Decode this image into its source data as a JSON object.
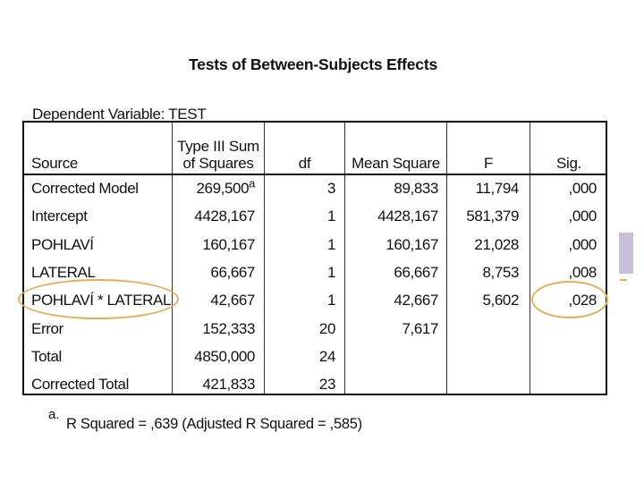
{
  "title": "Tests of Between-Subjects Effects",
  "dependent_variable": "Dependent Variable: TEST",
  "headers": {
    "source": "Source",
    "ss_line1": "Type III Sum",
    "ss_line2": "of Squares",
    "df": "df",
    "ms": "Mean Square",
    "f": "F",
    "sig": "Sig."
  },
  "rows": [
    {
      "source": "Corrected Model",
      "ss": "269,500",
      "ss_sup": "a",
      "df": "3",
      "ms": "89,833",
      "f": "11,794",
      "sig": ",000"
    },
    {
      "source": "Intercept",
      "ss": "4428,167",
      "ss_sup": "",
      "df": "1",
      "ms": "4428,167",
      "f": "581,379",
      "sig": ",000"
    },
    {
      "source": "POHLAVÍ",
      "ss": "160,167",
      "ss_sup": "",
      "df": "1",
      "ms": "160,167",
      "f": "21,028",
      "sig": ",000"
    },
    {
      "source": "LATERAL",
      "ss": "66,667",
      "ss_sup": "",
      "df": "1",
      "ms": "66,667",
      "f": "8,753",
      "sig": ",008"
    },
    {
      "source": "POHLAVÍ * LATERAL",
      "ss": "42,667",
      "ss_sup": "",
      "df": "1",
      "ms": "42,667",
      "f": "5,602",
      "sig": ",028"
    },
    {
      "source": "Error",
      "ss": "152,333",
      "ss_sup": "",
      "df": "20",
      "ms": "7,617",
      "f": "",
      "sig": ""
    },
    {
      "source": "Total",
      "ss": "4850,000",
      "ss_sup": "",
      "df": "24",
      "ms": "",
      "f": "",
      "sig": ""
    },
    {
      "source": "Corrected Total",
      "ss": "421,833",
      "ss_sup": "",
      "df": "23",
      "ms": "",
      "f": "",
      "sig": ""
    }
  ],
  "footnote_mark": "a.",
  "footnote": "R Squared = ,639 (Adjusted R Squared = ,585)",
  "highlight_color": "#e2b15a"
}
